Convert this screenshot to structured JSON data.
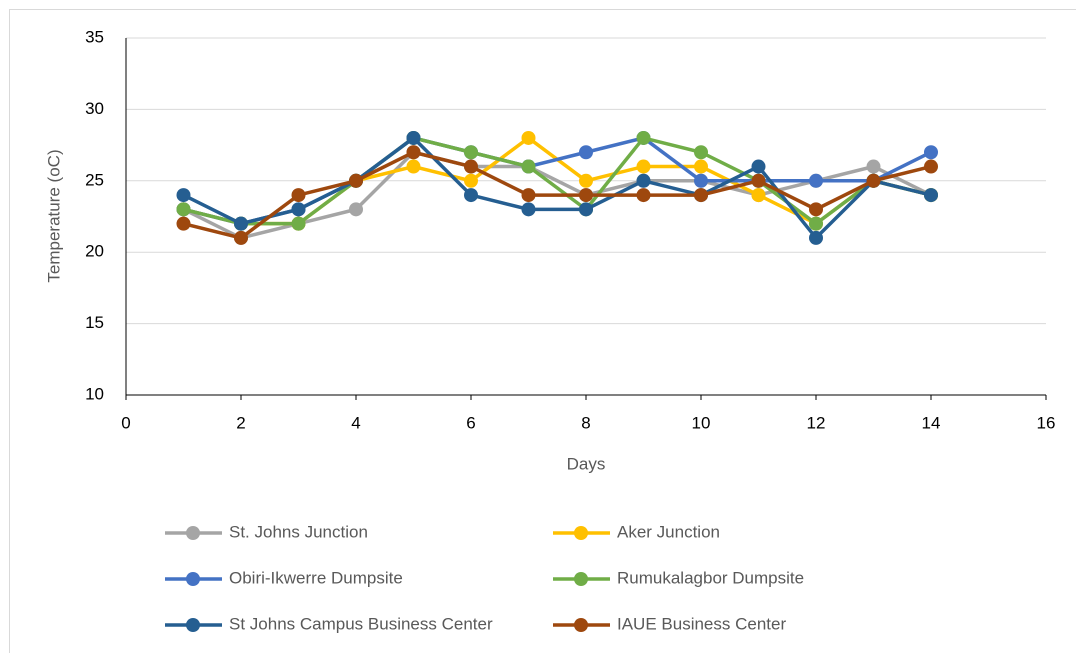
{
  "chart_data": {
    "type": "scatter-line",
    "x_label": "Days",
    "y_label": "Temperature (oC)",
    "x": [
      1,
      2,
      3,
      4,
      5,
      6,
      7,
      8,
      9,
      10,
      11,
      12,
      13,
      14
    ],
    "series": [
      {
        "name": "St. Johns Junction",
        "color": "#a5a5a5",
        "values": [
          23,
          21,
          22,
          23,
          27,
          26,
          26,
          24,
          25,
          25,
          24,
          25,
          26,
          24
        ]
      },
      {
        "name": "Aker Junction",
        "color": "#ffc000",
        "values": [
          23,
          22,
          22,
          25,
          26,
          25,
          28,
          25,
          26,
          26,
          24,
          22,
          25,
          24
        ]
      },
      {
        "name": "Obiri-Ikwerre Dumpsite",
        "color": "#4472c4",
        "values": [
          23,
          22,
          23,
          25,
          28,
          27,
          26,
          27,
          28,
          25,
          25,
          25,
          25,
          27
        ]
      },
      {
        "name": "Rumukalagbor Dumpsite",
        "color": "#70ad47",
        "values": [
          23,
          22,
          22,
          25,
          28,
          27,
          26,
          23,
          28,
          27,
          25,
          22,
          25,
          24
        ]
      },
      {
        "name": "St Johns Campus Business Center",
        "color": "#255e91",
        "values": [
          24,
          22,
          23,
          25,
          28,
          24,
          23,
          23,
          25,
          24,
          26,
          21,
          25,
          24
        ]
      },
      {
        "name": "IAUE Business Center",
        "color": "#9e480e",
        "values": [
          22,
          21,
          24,
          25,
          27,
          26,
          24,
          24,
          24,
          24,
          25,
          23,
          25,
          26
        ]
      }
    ],
    "xlim": [
      0,
      16
    ],
    "xticks": [
      0,
      2,
      4,
      6,
      8,
      10,
      12,
      14,
      16
    ],
    "ylim": [
      10,
      35
    ],
    "yticks": [
      10,
      15,
      20,
      25,
      30,
      35
    ],
    "grid": true,
    "legend": "bottom"
  }
}
